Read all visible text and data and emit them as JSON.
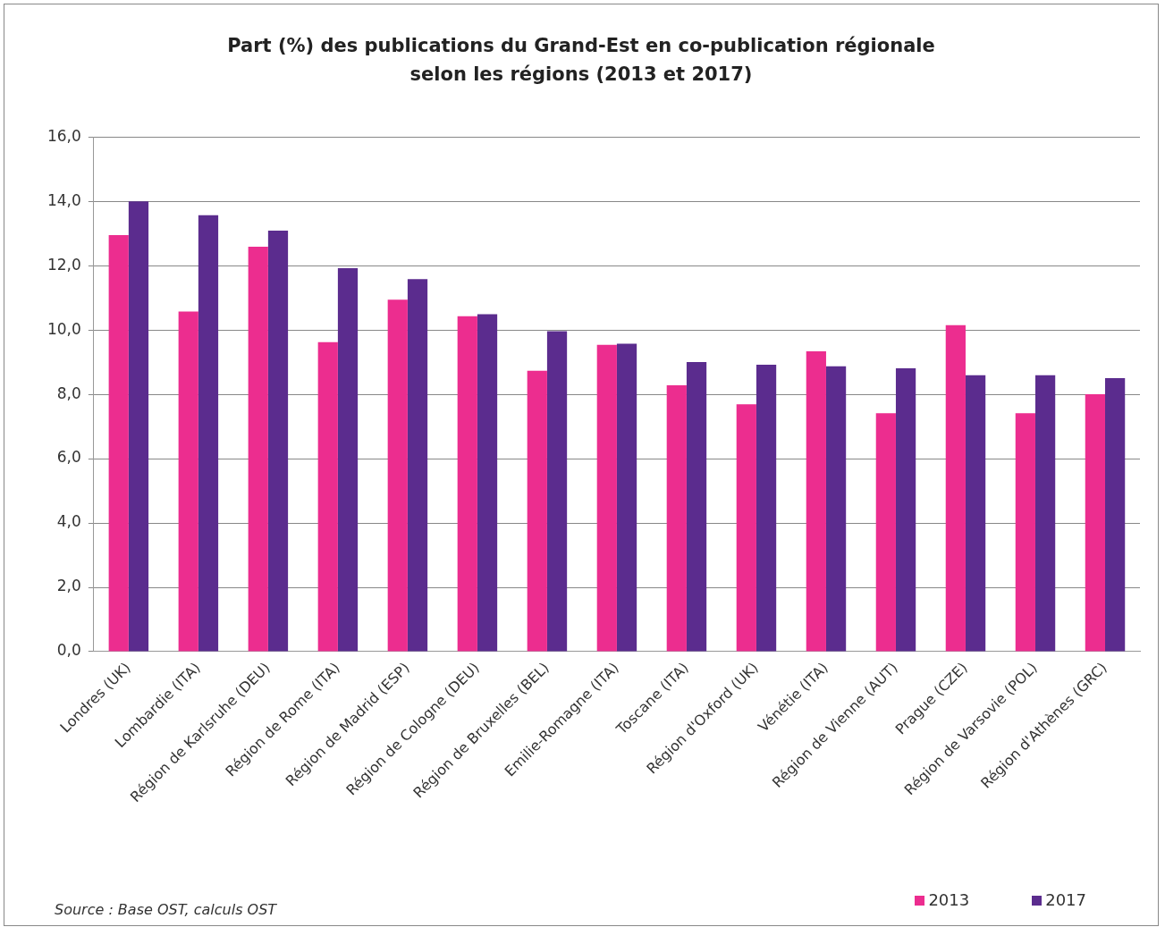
{
  "chart_data": {
    "type": "bar",
    "title": "Part (%) des publications du Grand-Est en co-publication régionale\nselon les régions (2013 et 2017)",
    "categories": [
      "Londres (UK)",
      "Lombardie (ITA)",
      "Région de Karlsruhe (DEU)",
      "Région de Rome (ITA)",
      "Région de Madrid (ESP)",
      "Région de Cologne (DEU)",
      "Région de Bruxelles (BEL)",
      "Emilie-Romagne (ITA)",
      "Toscane (ITA)",
      "Région d'Oxford (UK)",
      "Vénétie (ITA)",
      "Région de Vienne (AUT)",
      "Prague (CZE)",
      "Région de Varsovie (POL)",
      "Région d'Athènes (GRC)"
    ],
    "series": [
      {
        "name": "2013",
        "color": "#ec2d8f",
        "values": [
          12.95,
          10.57,
          12.59,
          9.62,
          10.94,
          10.43,
          8.73,
          9.54,
          8.28,
          7.69,
          9.34,
          7.41,
          10.15,
          7.41,
          8.0
        ]
      },
      {
        "name": "2017",
        "color": "#5b2c8e",
        "values": [
          14.0,
          13.57,
          13.09,
          11.92,
          11.58,
          10.49,
          9.96,
          9.57,
          9.0,
          8.92,
          8.87,
          8.81,
          8.59,
          8.59,
          8.5
        ]
      }
    ],
    "ylim": [
      0,
      16
    ],
    "yticks": [
      {
        "value": 0,
        "label": "0,0"
      },
      {
        "value": 2,
        "label": "2,0"
      },
      {
        "value": 4,
        "label": "4,0"
      },
      {
        "value": 6,
        "label": "6,0"
      },
      {
        "value": 8,
        "label": "8,0"
      },
      {
        "value": 10,
        "label": "10,0"
      },
      {
        "value": 12,
        "label": "12,0"
      },
      {
        "value": 14,
        "label": "14,0"
      },
      {
        "value": 16,
        "label": "16,0"
      }
    ],
    "grid": "y",
    "legend": "bottom right",
    "annotations": [
      "Source : Base OST, calculs OST"
    ]
  }
}
